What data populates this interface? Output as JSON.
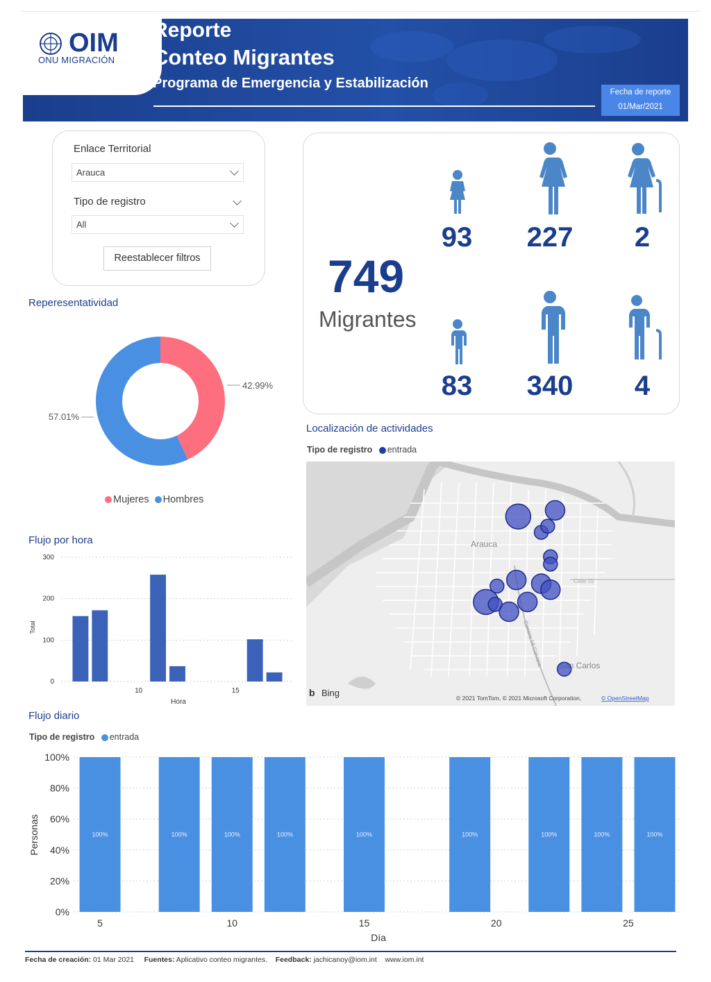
{
  "header": {
    "logo_text": "OIM",
    "logo_sub": "ONU MIGRACIÓN",
    "title_line1": "Reporte",
    "title_line2": "Conteo Migrantes",
    "subtitle": "Programa de Emergencia y Estabilización",
    "date_label": "Fecha de reporte",
    "date_value": "01/Mar/2021"
  },
  "filters": {
    "enlace_label": "Enlace Territorial",
    "enlace_value": "Arauca",
    "tipo_label": "Tipo de registro",
    "tipo_value": "All",
    "reset_label": "Reestablecer filtros"
  },
  "stats": {
    "total": "749",
    "total_label": "Migrantes",
    "girls": "93",
    "women": "227",
    "elderly_women": "2",
    "boys": "83",
    "men": "340",
    "elderly_men": "4"
  },
  "representatividad": {
    "title": "Reperesentatividad",
    "women_pct_label": "42.99%",
    "men_pct_label": "57.01%",
    "legend_women": "Mujeres",
    "legend_men": "Hombres"
  },
  "map": {
    "title": "Localización de actividades",
    "legend_label": "Tipo de registro",
    "legend_item": "entrada",
    "city_label": "Arauca",
    "town_label": "San Carlos",
    "road_label": "Carrera 16 Calvario",
    "street_label": "Calle 15",
    "bing_label": "Bing",
    "attribution": "© 2021 TomTom, © 2021 Microsoft Corporation,",
    "osm_label": "© OpenStreetMap"
  },
  "flujo_hora": {
    "title": "Flujo por hora",
    "ylabel": "Total",
    "xlabel": "Hora"
  },
  "flujo_diario": {
    "title": "Flujo diario",
    "legend_label": "Tipo de registro",
    "legend_item": "entrada",
    "ylabel": "Personas",
    "xlabel": "Día"
  },
  "footer": {
    "created_label": "Fecha de creación:",
    "created_value": "01 Mar 2021",
    "sources_label": "Fuentes:",
    "sources_value": "Aplicativo conteo migrantes.",
    "feedback_label": "Feedback:",
    "feedback_value": "jachicanoy@iom.int",
    "website": "www.iom.int"
  },
  "colors": {
    "brand": "#1a3e8c",
    "women": "#fd6e7e",
    "men": "#4a90e2",
    "hour_bar": "#3b62b8",
    "day_bar": "#4a90e2",
    "person_icon": "#4a86c8"
  },
  "chart_data": [
    {
      "type": "pie",
      "categories": [
        "Mujeres",
        "Hombres"
      ],
      "values": [
        42.99,
        57.01
      ]
    },
    {
      "type": "bar",
      "x": [
        7,
        8,
        11,
        12,
        16,
        17
      ],
      "values": [
        158,
        172,
        258,
        37,
        102,
        22
      ],
      "xticks": [
        10,
        15
      ],
      "yticks": [
        0,
        100,
        200,
        300
      ],
      "xlabel": "Hora",
      "ylabel": "Total",
      "ylim": [
        0,
        300
      ],
      "xlim": [
        6,
        18
      ]
    },
    {
      "type": "bar",
      "x": [
        5,
        8,
        10,
        12,
        15,
        19,
        22,
        24,
        26
      ],
      "values": [
        100,
        100,
        100,
        100,
        100,
        100,
        100,
        100,
        100
      ],
      "data_labels": [
        "100%",
        "100%",
        "100%",
        "100%",
        "100%",
        "100%",
        "100%",
        "100%",
        "100%"
      ],
      "series": [
        {
          "name": "entrada",
          "values": [
            100,
            100,
            100,
            100,
            100,
            100,
            100,
            100,
            100
          ]
        }
      ],
      "xticks": [
        5,
        10,
        15,
        20,
        25
      ],
      "yticks": [
        "0%",
        "20%",
        "40%",
        "60%",
        "80%",
        "100%"
      ],
      "xlabel": "Día",
      "ylabel": "Personas",
      "ylim": [
        0,
        100
      ],
      "xlim": [
        4,
        27
      ]
    }
  ],
  "map_points": [
    {
      "lat": 7.0905,
      "lon": -70.762,
      "count": 3
    },
    {
      "lat": 7.0892,
      "lon": -70.7595,
      "count": 1
    },
    {
      "lat": 7.0897,
      "lon": -70.7588,
      "count": 1
    },
    {
      "lat": 7.091,
      "lon": -70.758,
      "count": 2
    },
    {
      "lat": 7.0872,
      "lon": -70.7585,
      "count": 1
    },
    {
      "lat": 7.0866,
      "lon": -70.7585,
      "count": 1
    },
    {
      "lat": 7.0853,
      "lon": -70.7622,
      "count": 2
    },
    {
      "lat": 7.0848,
      "lon": -70.7643,
      "count": 1
    },
    {
      "lat": 7.085,
      "lon": -70.7595,
      "count": 2
    },
    {
      "lat": 7.0845,
      "lon": -70.7585,
      "count": 2
    },
    {
      "lat": 7.0835,
      "lon": -70.7655,
      "count": 3
    },
    {
      "lat": 7.0833,
      "lon": -70.7645,
      "count": 1
    },
    {
      "lat": 7.0827,
      "lon": -70.763,
      "count": 2
    },
    {
      "lat": 7.0835,
      "lon": -70.761,
      "count": 2
    },
    {
      "lat": 7.078,
      "lon": -70.757,
      "count": 1
    }
  ]
}
